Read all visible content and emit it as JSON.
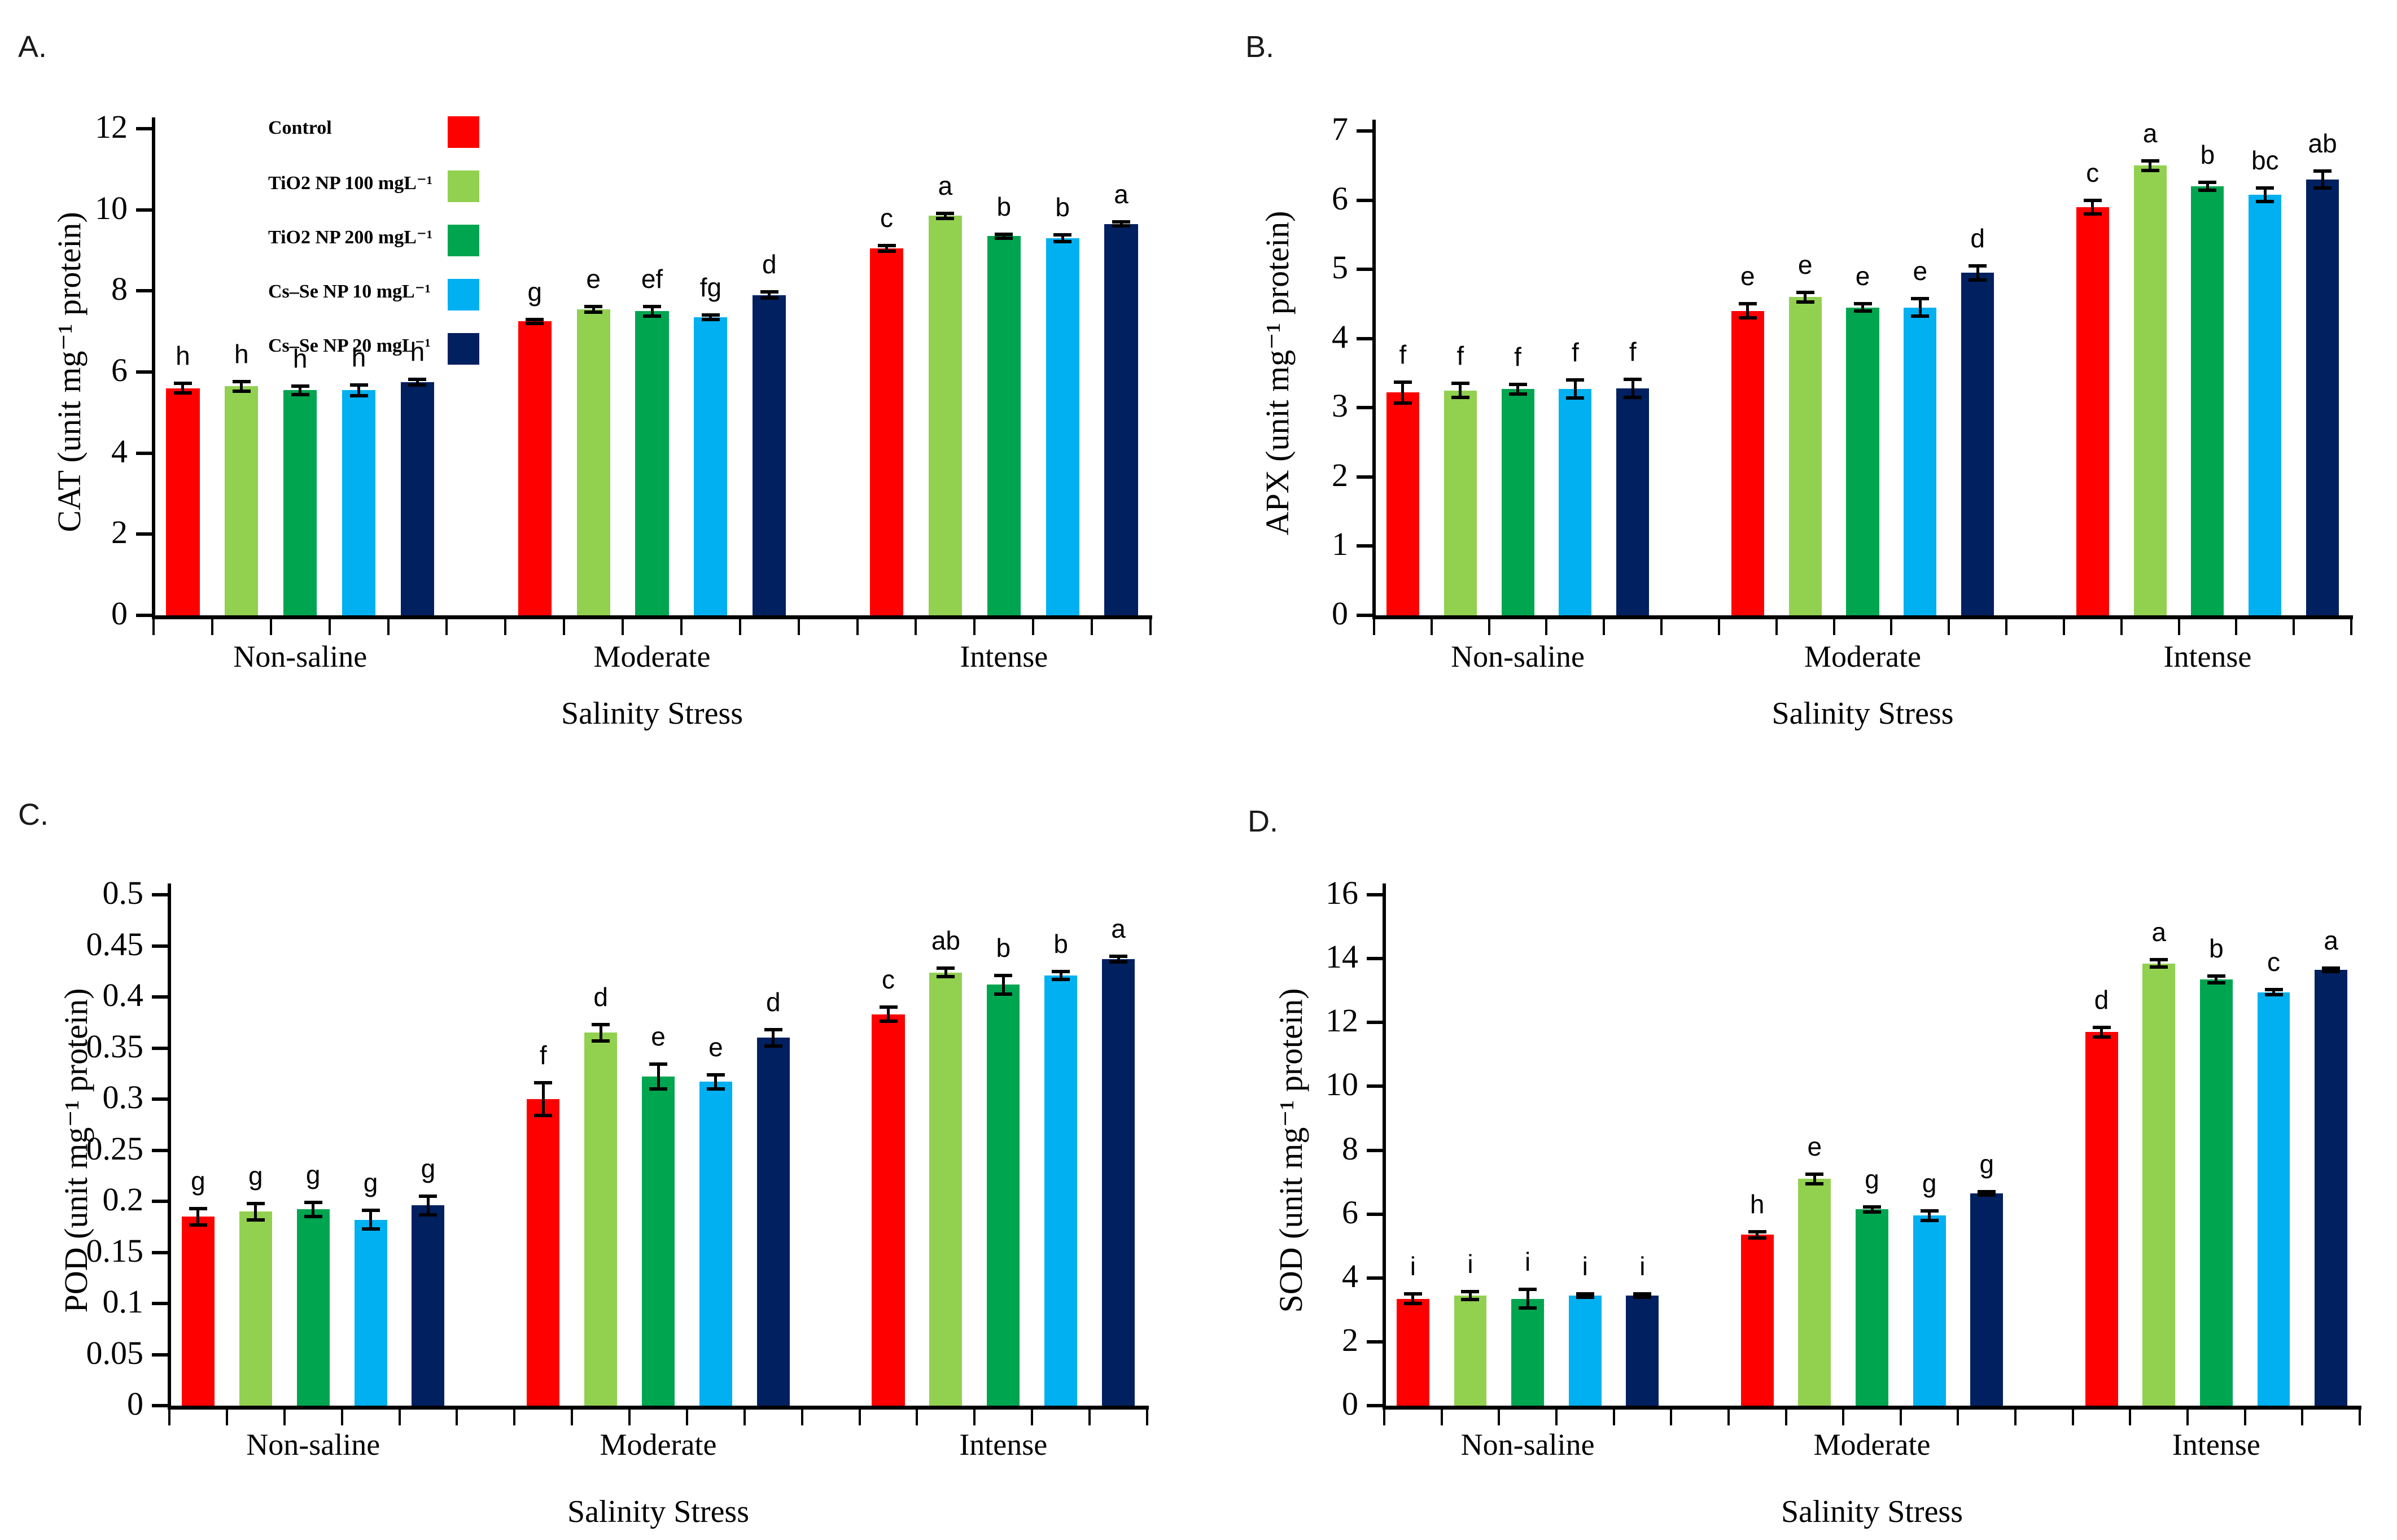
{
  "legend": {
    "items": [
      {
        "label": "Control",
        "color": "#FF0000"
      },
      {
        "label": "TiO2 NP 100 mgL⁻¹",
        "color": "#92D050"
      },
      {
        "label": "TiO2 NP 200 mgL⁻¹",
        "color": "#00A550"
      },
      {
        "label": "Cs–Se NP 10 mgL⁻¹",
        "color": "#00B0F0"
      },
      {
        "label": "Cs–Se NP 20 mgL⁻¹",
        "color": "#002060"
      }
    ]
  },
  "chart_data": [
    {
      "panel_label": "A.",
      "type": "bar",
      "ylabel": "CAT (unit mg⁻¹ protein)",
      "xlabel": "Salinity Stress",
      "categories": [
        "Non-saline",
        "Moderate",
        "Intense"
      ],
      "ylim": [
        0,
        12
      ],
      "ytick_labels": [
        "0",
        "2",
        "4",
        "6",
        "8",
        "10",
        "12"
      ],
      "grid": false,
      "legend_position": "upper-left-inside",
      "series": [
        {
          "name": "Control",
          "values": [
            5.6,
            7.25,
            9.05
          ],
          "errors": [
            0.12,
            0.05,
            0.07
          ],
          "letters": [
            "h",
            "g",
            "c"
          ]
        },
        {
          "name": "TiO2 NP 100 mgL⁻¹",
          "values": [
            5.65,
            7.55,
            9.85
          ],
          "errors": [
            0.12,
            0.07,
            0.06
          ],
          "letters": [
            "h",
            "e",
            "a"
          ]
        },
        {
          "name": "TiO2 NP 200 mgL⁻¹",
          "values": [
            5.55,
            7.5,
            9.35
          ],
          "errors": [
            0.1,
            0.12,
            0.05
          ],
          "letters": [
            "h",
            "ef",
            "b"
          ]
        },
        {
          "name": "Cs–Se NP 10 mgL⁻¹",
          "values": [
            5.55,
            7.35,
            9.3
          ],
          "errors": [
            0.13,
            0.05,
            0.08
          ],
          "letters": [
            "h",
            "fg",
            "b"
          ]
        },
        {
          "name": "Cs–Se NP 20 mgL⁻¹",
          "values": [
            5.75,
            7.9,
            9.65
          ],
          "errors": [
            0.07,
            0.07,
            0.05
          ],
          "letters": [
            "h",
            "d",
            "a"
          ]
        }
      ]
    },
    {
      "panel_label": "B.",
      "type": "bar",
      "ylabel": "APX (unit mg⁻¹ protein)",
      "xlabel": "Salinity Stress",
      "categories": [
        "Non-saline",
        "Moderate",
        "Intense"
      ],
      "ylim": [
        0,
        7
      ],
      "ytick_labels": [
        "0",
        "1",
        "2",
        "3",
        "4",
        "5",
        "6",
        "7"
      ],
      "grid": false,
      "series": [
        {
          "name": "Control",
          "values": [
            3.22,
            4.4,
            5.9
          ],
          "errors": [
            0.15,
            0.1,
            0.1
          ],
          "letters": [
            "f",
            "e",
            "c"
          ]
        },
        {
          "name": "TiO2 NP 100 mgL⁻¹",
          "values": [
            3.25,
            4.6,
            6.5
          ],
          "errors": [
            0.1,
            0.07,
            0.07
          ],
          "letters": [
            "f",
            "e",
            "a"
          ]
        },
        {
          "name": "TiO2 NP 200 mgL⁻¹",
          "values": [
            3.27,
            4.45,
            6.2
          ],
          "errors": [
            0.07,
            0.05,
            0.06
          ],
          "letters": [
            "f",
            "e",
            "b"
          ]
        },
        {
          "name": "Cs–Se NP 10 mgL⁻¹",
          "values": [
            3.27,
            4.45,
            6.08
          ],
          "errors": [
            0.13,
            0.13,
            0.1
          ],
          "letters": [
            "f",
            "e",
            "bc"
          ]
        },
        {
          "name": "Cs–Se NP 20 mgL⁻¹",
          "values": [
            3.28,
            4.95,
            6.3
          ],
          "errors": [
            0.13,
            0.1,
            0.12
          ],
          "letters": [
            "f",
            "d",
            "ab"
          ]
        }
      ]
    },
    {
      "panel_label": "C.",
      "type": "bar",
      "ylabel": "POD (unit mg⁻¹ protein)",
      "xlabel": "Salinity Stress",
      "categories": [
        "Non-saline",
        "Moderate",
        "Intense"
      ],
      "ylim": [
        0,
        0.5
      ],
      "ytick_labels": [
        "0",
        "0.05",
        "0.1",
        "0.15",
        "0.2",
        "0.25",
        "0.3",
        "0.35",
        "0.4",
        "0.45",
        "0.5"
      ],
      "grid": false,
      "series": [
        {
          "name": "Control",
          "values": [
            0.185,
            0.3,
            0.383
          ],
          "errors": [
            0.008,
            0.016,
            0.007
          ],
          "letters": [
            "g",
            "f",
            "c"
          ]
        },
        {
          "name": "TiO2 NP 100 mgL⁻¹",
          "values": [
            0.19,
            0.365,
            0.424
          ],
          "errors": [
            0.008,
            0.008,
            0.004
          ],
          "letters": [
            "g",
            "d",
            "ab"
          ]
        },
        {
          "name": "TiO2 NP 200 mgL⁻¹",
          "values": [
            0.192,
            0.322,
            0.412
          ],
          "errors": [
            0.007,
            0.012,
            0.009
          ],
          "letters": [
            "g",
            "e",
            "b"
          ]
        },
        {
          "name": "Cs–Se NP 10 mgL⁻¹",
          "values": [
            0.182,
            0.317,
            0.421
          ],
          "errors": [
            0.009,
            0.007,
            0.004
          ],
          "letters": [
            "g",
            "e",
            "b"
          ]
        },
        {
          "name": "Cs–Se NP 20 mgL⁻¹",
          "values": [
            0.196,
            0.36,
            0.437
          ],
          "errors": [
            0.009,
            0.008,
            0.003
          ],
          "letters": [
            "g",
            "d",
            "a"
          ]
        }
      ]
    },
    {
      "panel_label": "D.",
      "type": "bar",
      "ylabel": "SOD (unit mg⁻¹ protein)",
      "xlabel": "Salinity Stress",
      "categories": [
        "Non-saline",
        "Moderate",
        "Intense"
      ],
      "ylim": [
        0,
        16
      ],
      "ytick_labels": [
        "0",
        "2",
        "4",
        "6",
        "8",
        "10",
        "12",
        "14",
        "16"
      ],
      "grid": false,
      "series": [
        {
          "name": "Control",
          "values": [
            3.35,
            5.35,
            11.7
          ],
          "errors": [
            0.15,
            0.1,
            0.15
          ],
          "letters": [
            "i",
            "h",
            "d"
          ]
        },
        {
          "name": "TiO2 NP 100 mgL⁻¹",
          "values": [
            3.45,
            7.1,
            13.85
          ],
          "errors": [
            0.12,
            0.15,
            0.12
          ],
          "letters": [
            "i",
            "e",
            "a"
          ]
        },
        {
          "name": "TiO2 NP 200 mgL⁻¹",
          "values": [
            3.35,
            6.15,
            13.35
          ],
          "errors": [
            0.3,
            0.08,
            0.1
          ],
          "letters": [
            "i",
            "g",
            "b"
          ]
        },
        {
          "name": "Cs–Se NP 10 mgL⁻¹",
          "values": [
            3.45,
            5.95,
            12.95
          ],
          "errors": [
            0.05,
            0.15,
            0.08
          ],
          "letters": [
            "i",
            "g",
            "c"
          ]
        },
        {
          "name": "Cs–Se NP 20 mgL⁻¹",
          "values": [
            3.45,
            6.65,
            13.65
          ],
          "errors": [
            0.05,
            0.05,
            0.06
          ],
          "letters": [
            "i",
            "g",
            "a"
          ]
        }
      ]
    }
  ]
}
